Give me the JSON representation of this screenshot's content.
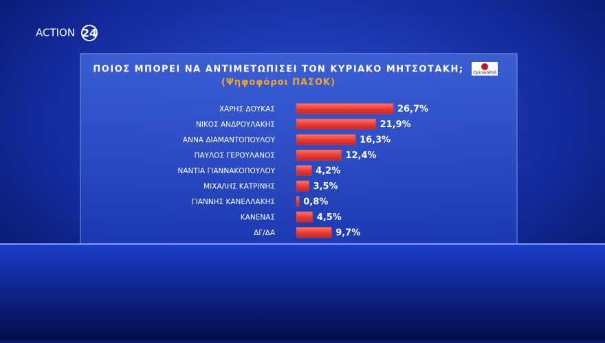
{
  "logo": {
    "channel": "ACTION",
    "channel_number": "24",
    "pollster": "OpinionPoll"
  },
  "chart_data": {
    "type": "bar",
    "orientation": "horizontal",
    "title": "ΠΟΙΟΣ ΜΠΟΡΕΙ ΝΑ ΑΝΤΙΜΕΤΩΠΙΣΕΙ ΤΟΝ ΚΥΡΙΑΚΟ ΜΗΤΣΟΤΑΚΗ;",
    "subtitle": "(Ψηφοφόροι ΠΑΣΟΚ)",
    "categories": [
      "ΧΑΡΗΣ ΔΟΥΚΑΣ",
      "ΝΙΚΟΣ ΑΝΔΡΟΥΛΑΚΗΣ",
      "ΑΝΝΑ ΔΙΑΜΑΝΤΟΠΟΥΛΟΥ",
      "ΠΑΥΛΟΣ ΓΕΡΟΥΛΑΝΟΣ",
      "ΝΑΝΤΙΑ ΓΙΑΝΝΑΚΟΠΟΥΛΟΥ",
      "ΜΙΧΑΛΗΣ ΚΑΤΡΙΝΗΣ",
      "ΓΙΑΝΝΗΣ ΚΑΝΕΛΛΑΚΗΣ",
      "ΚΑΝΕΝΑΣ",
      "ΔΓ/ΔΑ"
    ],
    "values": [
      26.7,
      21.9,
      16.3,
      12.4,
      4.2,
      3.5,
      0.8,
      4.5,
      9.7
    ],
    "value_labels": [
      "26,7%",
      "21,9%",
      "16,3%",
      "12,4%",
      "4,2%",
      "3,5%",
      "0,8%",
      "4,5%",
      "9,7%"
    ],
    "color": "#ee3b33"
  }
}
